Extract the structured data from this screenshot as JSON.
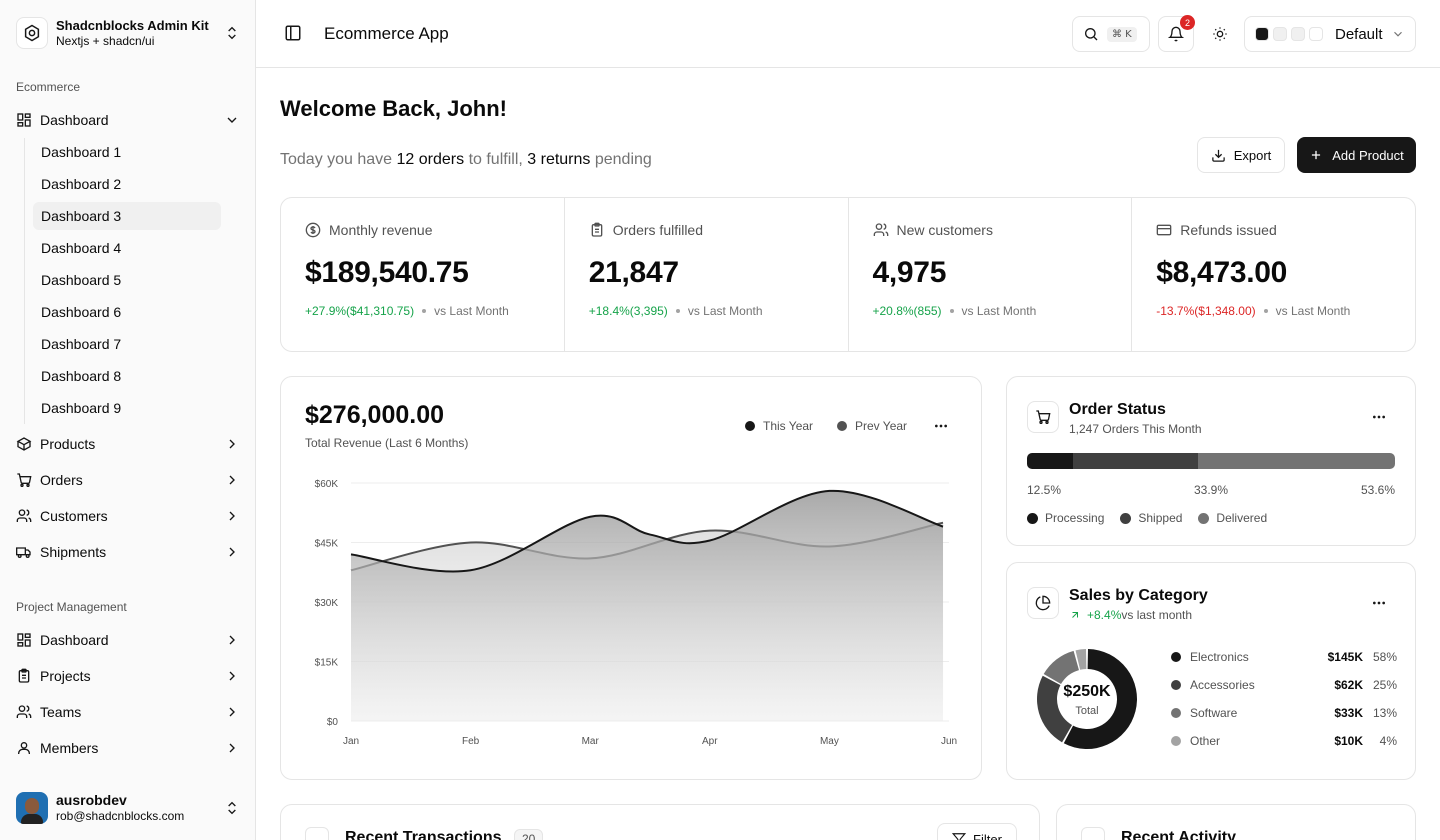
{
  "brand": {
    "title": "Shadcnblocks Admin Kit",
    "subtitle": "Nextjs + shadcn/ui"
  },
  "sidebar": {
    "group1_label": "Ecommerce",
    "dashboard_label": "Dashboard",
    "sub_items": [
      "Dashboard 1",
      "Dashboard 2",
      "Dashboard 3",
      "Dashboard 4",
      "Dashboard 5",
      "Dashboard 6",
      "Dashboard 7",
      "Dashboard 8",
      "Dashboard 9"
    ],
    "active_sub_item": "Dashboard 3",
    "ecommerce_items": [
      {
        "label": "Products",
        "icon": "package-icon"
      },
      {
        "label": "Orders",
        "icon": "cart-icon"
      },
      {
        "label": "Customers",
        "icon": "users-icon"
      },
      {
        "label": "Shipments",
        "icon": "truck-icon"
      }
    ],
    "group2_label": "Project Management",
    "pm_items": [
      {
        "label": "Dashboard",
        "icon": "layout-grid-icon"
      },
      {
        "label": "Projects",
        "icon": "clipboard-icon"
      },
      {
        "label": "Teams",
        "icon": "users-icon"
      },
      {
        "label": "Members",
        "icon": "user-icon"
      }
    ]
  },
  "user": {
    "name": "ausrobdev",
    "email": "rob@shadcnblocks.com"
  },
  "header": {
    "title": "Ecommerce App",
    "search_shortcut": "⌘ K",
    "notification_count": "2",
    "theme_label": "Default",
    "theme_swatches": [
      "#171717",
      "#f0f0f0",
      "#f0f0f0",
      "#ffffff"
    ]
  },
  "welcome": {
    "title": "Welcome Back, John!",
    "prefix": "Today you have ",
    "orders": "12 orders",
    "middle": " to fulfill, ",
    "returns": "3 returns",
    "suffix": " pending"
  },
  "actions": {
    "export_label": "Export",
    "add_product_label": "Add Product"
  },
  "stats": [
    {
      "label": "Monthly revenue",
      "value": "$189,540.75",
      "change": "+27.9%($41,310.75)",
      "direction": "up",
      "compare": "vs Last Month",
      "icon": "dollar-circle-icon"
    },
    {
      "label": "Orders fulfilled",
      "value": "21,847",
      "change": "+18.4%(3,395)",
      "direction": "up",
      "compare": "vs Last Month",
      "icon": "clipboard-icon"
    },
    {
      "label": "New customers",
      "value": "4,975",
      "change": "+20.8%(855)",
      "direction": "up",
      "compare": "vs Last Month",
      "icon": "users-icon"
    },
    {
      "label": "Refunds issued",
      "value": "$8,473.00",
      "change": "-13.7%($1,348.00)",
      "direction": "down",
      "compare": "vs Last Month",
      "icon": "credit-card-icon"
    }
  ],
  "revenue": {
    "amount": "$276,000.00",
    "subtitle": "Total Revenue (Last 6 Months)",
    "legend_this": "This Year",
    "legend_prev": "Prev Year"
  },
  "chart_data": {
    "type": "area",
    "categories": [
      "Jan",
      "Feb",
      "Mar",
      "Apr",
      "May",
      "Jun"
    ],
    "ylim": [
      0,
      60000
    ],
    "yticks": [
      0,
      15000,
      30000,
      45000,
      60000
    ],
    "ytick_labels": [
      "$0",
      "$15K",
      "$30K",
      "$45K",
      "$60K"
    ],
    "grid": true,
    "series": [
      {
        "name": "This Year",
        "x": [
          0,
          1,
          2,
          2.5,
          3,
          4,
          4.95
        ],
        "values": [
          42000,
          38000,
          51500,
          47000,
          45500,
          58000,
          49000
        ],
        "color": "#171717"
      },
      {
        "name": "Prev Year",
        "x": [
          0,
          1,
          2,
          3,
          4,
          4.95
        ],
        "values": [
          38000,
          45000,
          41000,
          48000,
          44000,
          50000
        ],
        "color": "#525252"
      }
    ]
  },
  "order_status": {
    "title": "Order Status",
    "subtitle": "1,247 Orders This Month",
    "segments": [
      {
        "label": "Processing",
        "pct": 12.5,
        "pct_label": "12.5%",
        "color": "#171717"
      },
      {
        "label": "Shipped",
        "pct": 33.9,
        "pct_label": "33.9%",
        "color": "#404040"
      },
      {
        "label": "Delivered",
        "pct": 53.6,
        "pct_label": "53.6%",
        "color": "#737373"
      }
    ]
  },
  "sales_category": {
    "title": "Sales by Category",
    "trend": "+8.4%",
    "trend_suffix": " vs last month",
    "total_value": "$250K",
    "total_label": "Total",
    "categories": [
      {
        "name": "Electronics",
        "value": "$145K",
        "pct": "58%",
        "share": 58,
        "color": "#171717"
      },
      {
        "name": "Accessories",
        "value": "$62K",
        "pct": "25%",
        "share": 25,
        "color": "#404040"
      },
      {
        "name": "Software",
        "value": "$33K",
        "pct": "13%",
        "share": 13,
        "color": "#737373"
      },
      {
        "name": "Other",
        "value": "$10K",
        "pct": "4%",
        "share": 4,
        "color": "#a3a3a3"
      }
    ]
  },
  "transactions": {
    "title": "Recent Transactions",
    "count": "20",
    "filter_label": "Filter"
  },
  "activity": {
    "title": "Recent Activity"
  }
}
